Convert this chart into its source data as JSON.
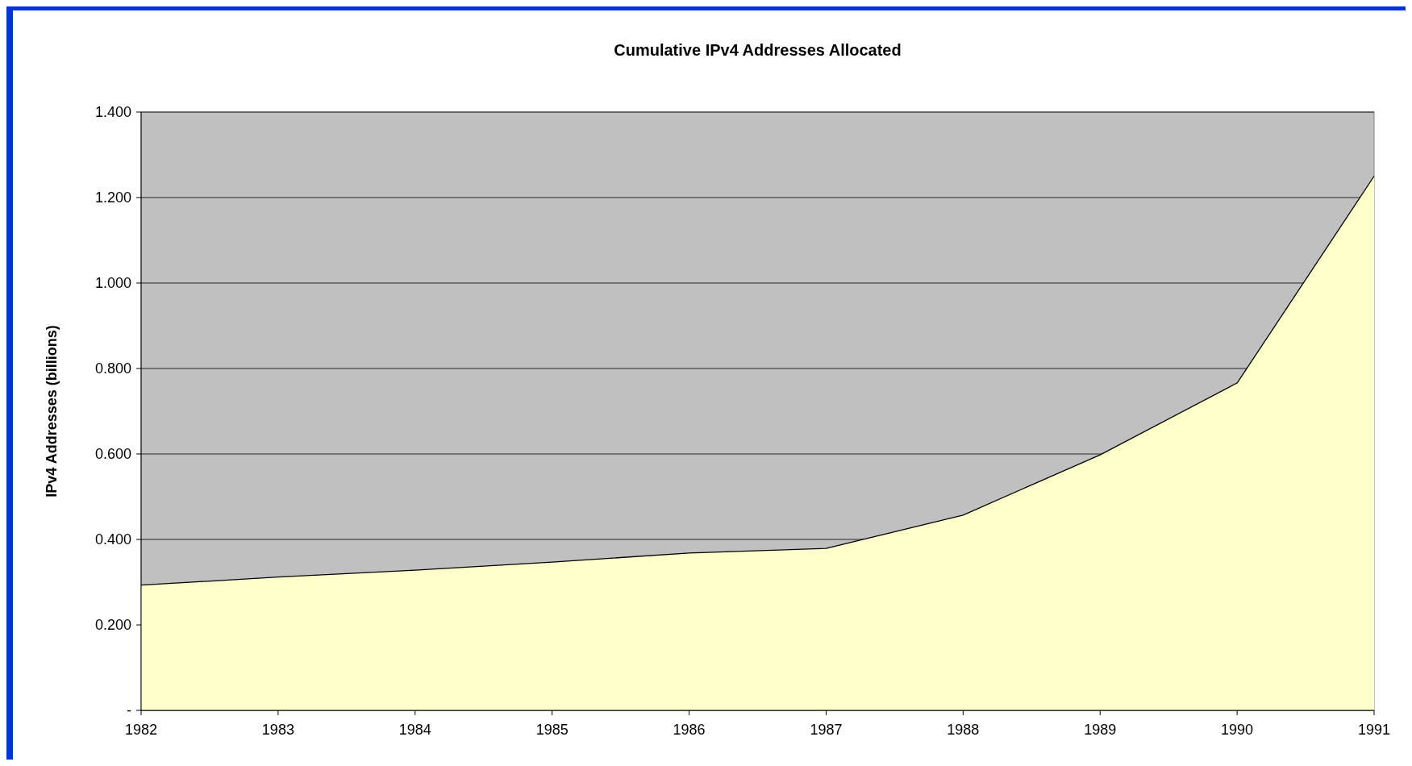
{
  "chart_data": {
    "type": "area",
    "title": "Cumulative IPv4 Addresses Allocated",
    "ylabel": "IPv4 Addresses (billions)",
    "categories": [
      "1982",
      "1983",
      "1984",
      "1985",
      "1986",
      "1987",
      "1988",
      "1989",
      "1990",
      "1991"
    ],
    "series": [
      {
        "color": "#ffffcc",
        "values": [
          0.293,
          0.312,
          0.328,
          0.347,
          0.368,
          0.379,
          0.457,
          0.598,
          0.766,
          1.25
        ]
      }
    ],
    "ylim": [
      0,
      1.4
    ],
    "yticks": [
      {
        "value": 0,
        "label": "-"
      },
      {
        "value": 0.2,
        "label": "0.200"
      },
      {
        "value": 0.4,
        "label": "0.400"
      },
      {
        "value": 0.6,
        "label": "0.600"
      },
      {
        "value": 0.8,
        "label": "0.800"
      },
      {
        "value": 1,
        "label": "1.000"
      },
      {
        "value": 1.2,
        "label": "1.200"
      },
      {
        "value": 1.4,
        "label": "1.400"
      }
    ],
    "grid": "y"
  }
}
